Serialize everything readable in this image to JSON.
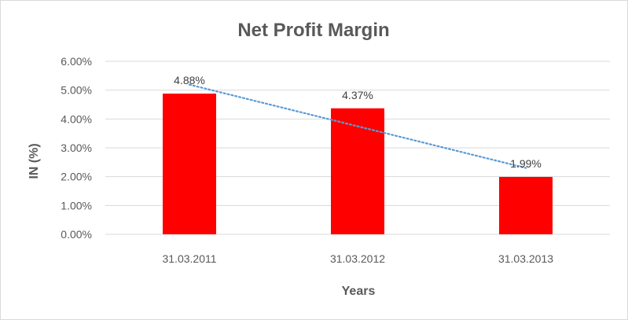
{
  "chart_data": {
    "type": "bar",
    "title": "Net Profit Margin",
    "xlabel": "Years",
    "ylabel": "IN (%)",
    "categories": [
      "31.03.2011",
      "31.03.2012",
      "31.03.2013"
    ],
    "values": [
      4.88,
      4.37,
      1.99
    ],
    "data_labels": [
      "4.88%",
      "4.37%",
      "1.99%"
    ],
    "yticks": [
      "0.00%",
      "1.00%",
      "2.00%",
      "3.00%",
      "4.00%",
      "5.00%",
      "6.00%"
    ],
    "ylim": [
      0,
      6
    ],
    "grid": true,
    "trendline": "linear",
    "colors": {
      "bar": "#ff0000",
      "trendline": "#5b9bd5",
      "grid": "#d9d9d9"
    }
  }
}
